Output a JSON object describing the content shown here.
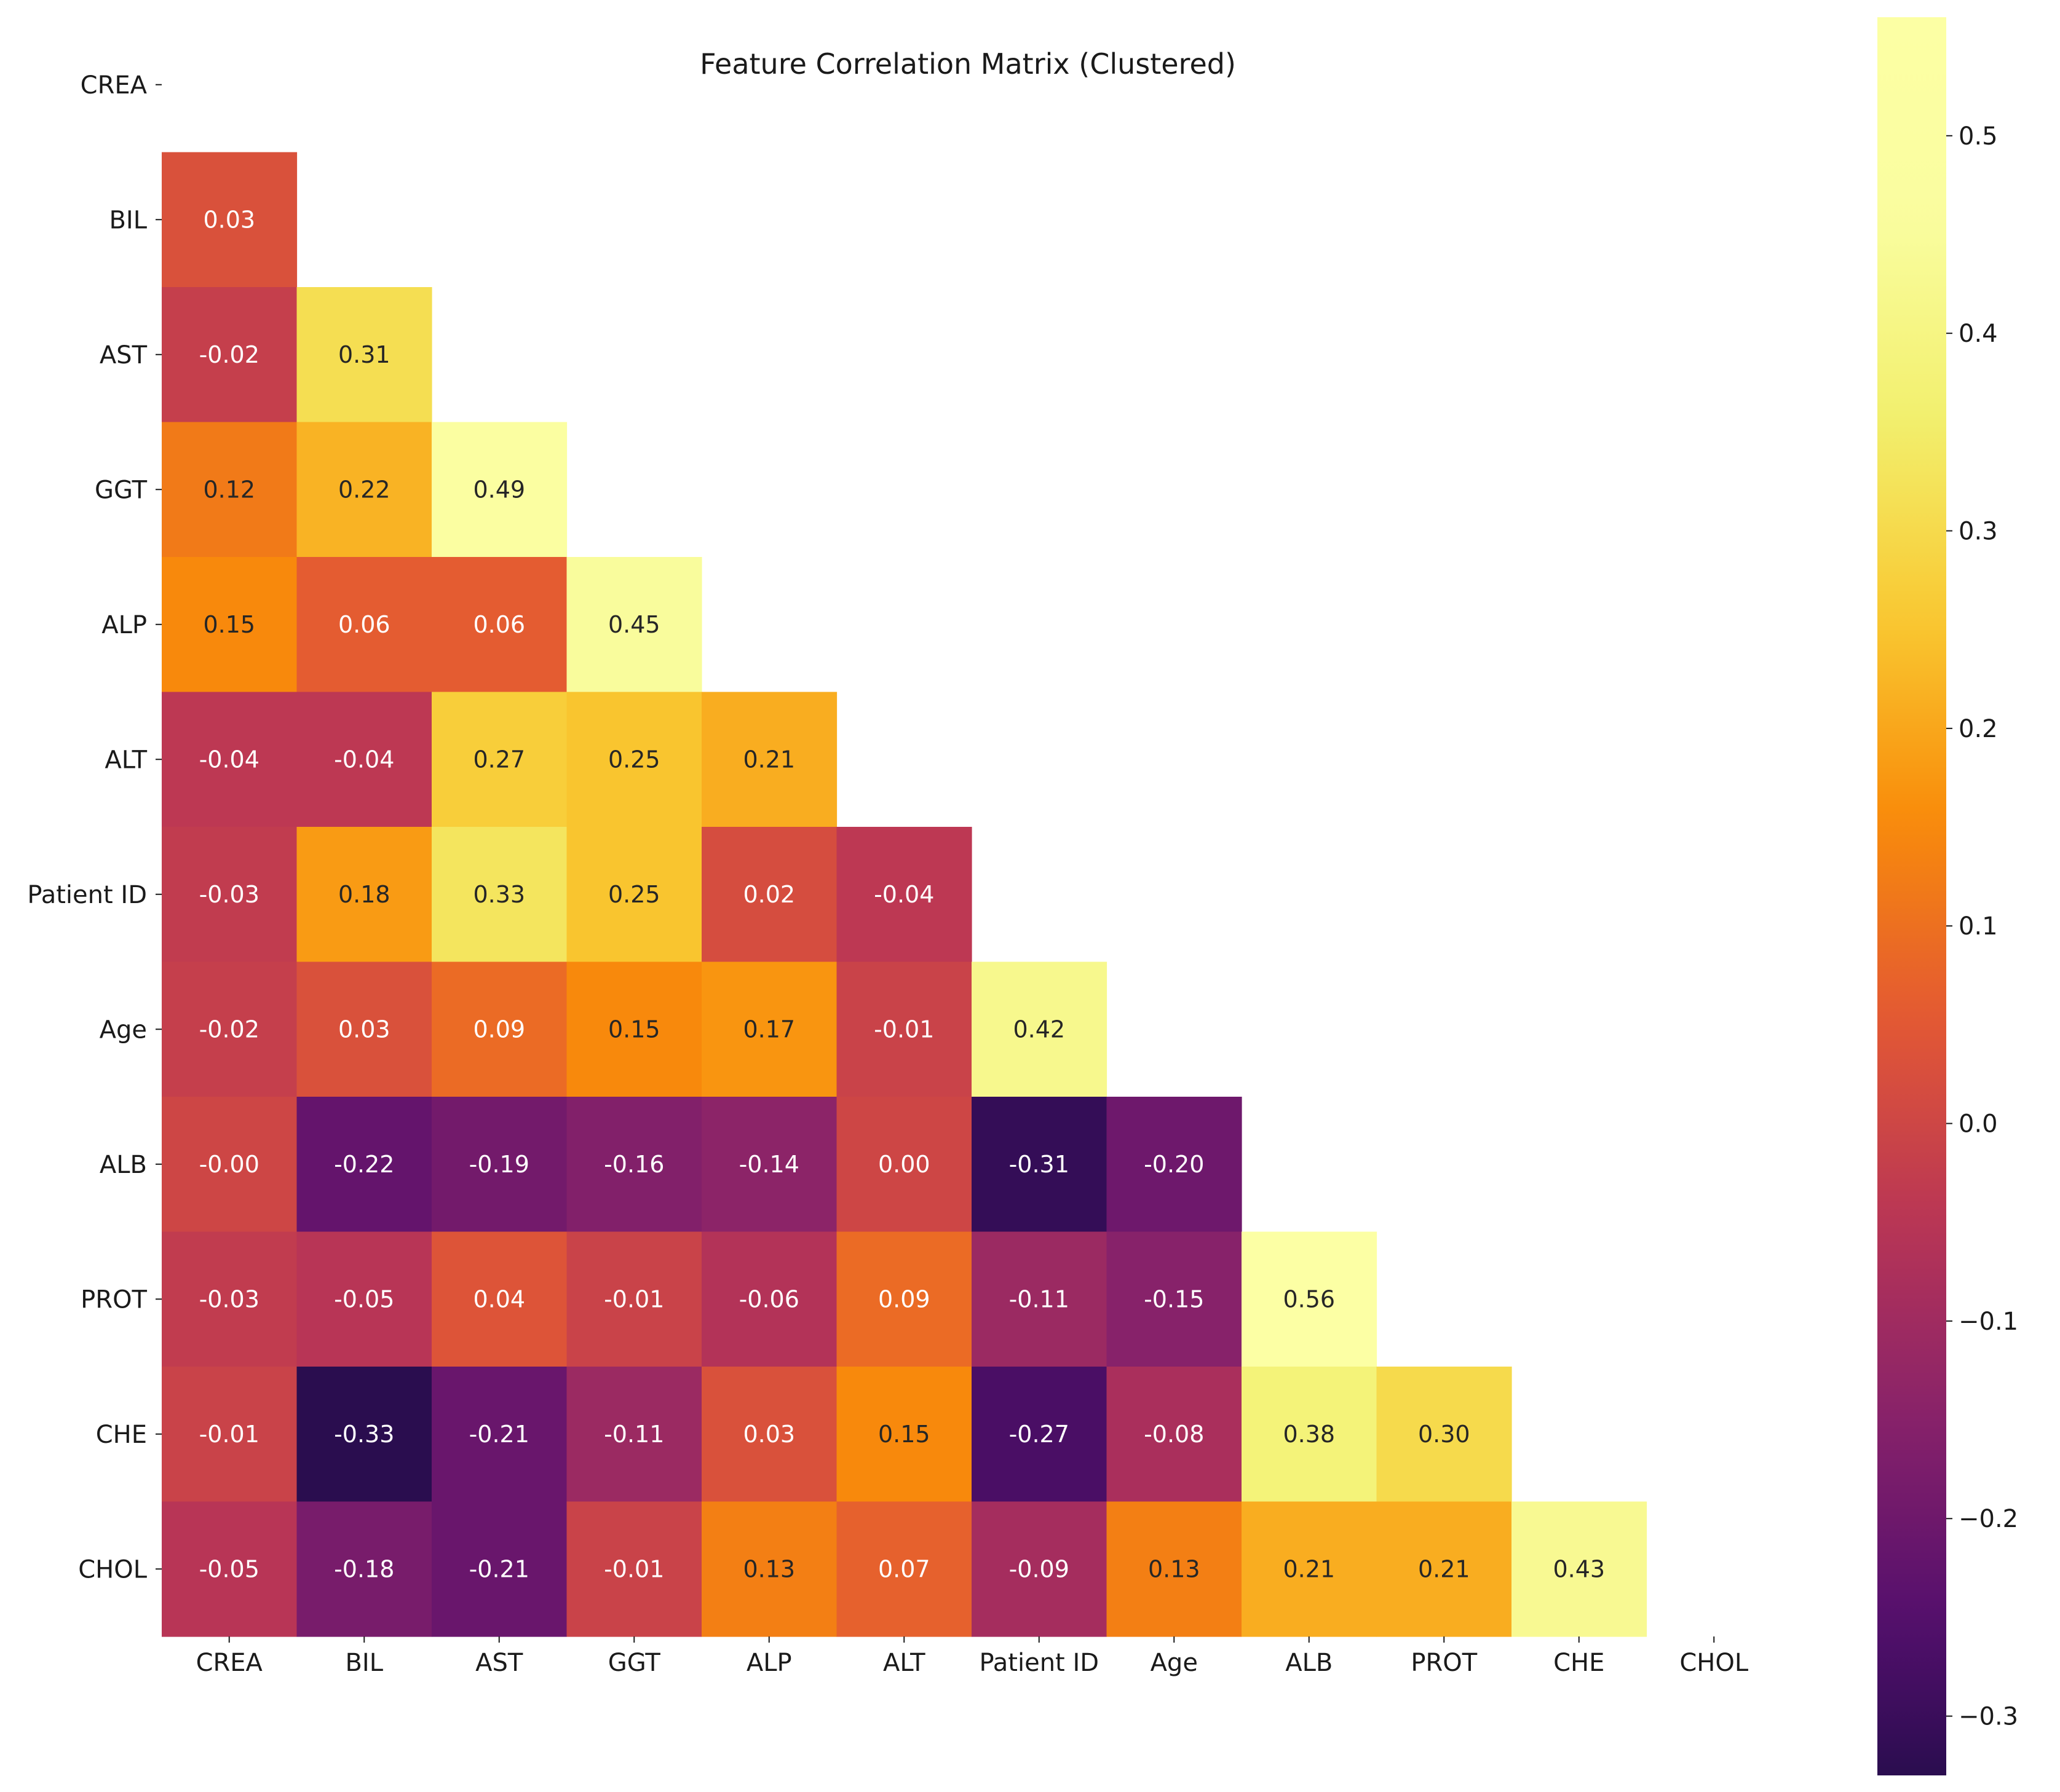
{
  "chart_data": {
    "type": "heatmap",
    "title": "Feature Correlation Matrix (Clustered)",
    "xlabel": "",
    "ylabel": "",
    "labels": [
      "CREA",
      "BIL",
      "AST",
      "GGT",
      "ALP",
      "ALT",
      "Patient ID",
      "Age",
      "ALB",
      "PROT",
      "CHE",
      "CHOL"
    ],
    "mask": "upper triangle including diagonal",
    "colormap": "inferno",
    "vmin": -0.33,
    "vmax": 0.56,
    "colorbar_ticks": [
      "−0.3",
      "−0.2",
      "−0.1",
      "0.0",
      "0.1",
      "0.2",
      "0.3",
      "0.4",
      "0.5"
    ],
    "colorbar_tick_values": [
      -0.3,
      -0.2,
      -0.1,
      0.0,
      0.1,
      0.2,
      0.3,
      0.4,
      0.5
    ],
    "lower_triangle": [
      [],
      [
        0.03
      ],
      [
        -0.02,
        0.31
      ],
      [
        0.12,
        0.22,
        0.49
      ],
      [
        0.15,
        0.06,
        0.06,
        0.45
      ],
      [
        -0.04,
        -0.04,
        0.27,
        0.25,
        0.21
      ],
      [
        -0.03,
        0.18,
        0.33,
        0.25,
        0.02,
        -0.04
      ],
      [
        -0.02,
        0.03,
        0.09,
        0.15,
        0.17,
        -0.01,
        0.42
      ],
      [
        -0.0,
        -0.22,
        -0.19,
        -0.16,
        -0.14,
        0.0,
        -0.31,
        -0.2
      ],
      [
        -0.03,
        -0.05,
        0.04,
        -0.01,
        -0.06,
        0.09,
        -0.11,
        -0.15,
        0.56
      ],
      [
        -0.01,
        -0.33,
        -0.21,
        -0.11,
        0.03,
        0.15,
        -0.27,
        -0.08,
        0.38,
        0.3
      ],
      [
        -0.05,
        -0.18,
        -0.21,
        -0.01,
        0.13,
        0.07,
        -0.09,
        0.13,
        0.21,
        0.21,
        0.43
      ]
    ],
    "cell_text": [
      [],
      [
        "0.03"
      ],
      [
        "-0.02",
        "0.31"
      ],
      [
        "0.12",
        "0.22",
        "0.49"
      ],
      [
        "0.15",
        "0.06",
        "0.06",
        "0.45"
      ],
      [
        "-0.04",
        "-0.04",
        "0.27",
        "0.25",
        "0.21"
      ],
      [
        "-0.03",
        "0.18",
        "0.33",
        "0.25",
        "0.02",
        "-0.04"
      ],
      [
        "-0.02",
        "0.03",
        "0.09",
        "0.15",
        "0.17",
        "-0.01",
        "0.42"
      ],
      [
        "-0.00",
        "-0.22",
        "-0.19",
        "-0.16",
        "-0.14",
        "0.00",
        "-0.31",
        "-0.20"
      ],
      [
        "-0.03",
        "-0.05",
        "0.04",
        "-0.01",
        "-0.06",
        "0.09",
        "-0.11",
        "-0.15",
        "0.56"
      ],
      [
        "-0.01",
        "-0.33",
        "-0.21",
        "-0.11",
        "0.03",
        "0.15",
        "-0.27",
        "-0.08",
        "0.38",
        "0.30"
      ],
      [
        "-0.05",
        "-0.18",
        "-0.21",
        "-0.01",
        "0.13",
        "0.07",
        "-0.09",
        "0.13",
        "0.21",
        "0.21",
        "0.43"
      ]
    ]
  }
}
